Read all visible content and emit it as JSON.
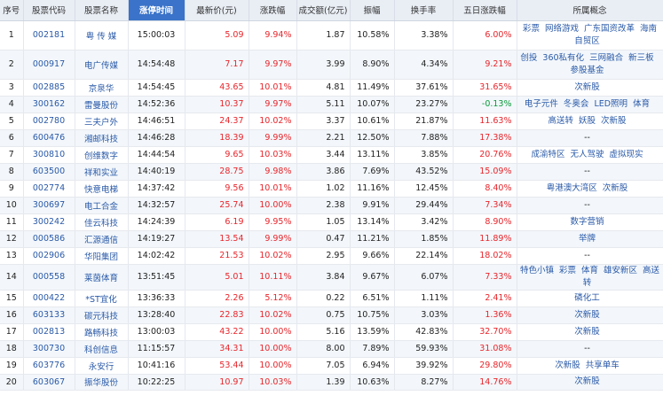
{
  "columns": [
    "序号",
    "股票代码",
    "股票名称",
    "涨停时间",
    "最新价(元)",
    "涨跌幅",
    "成交额(亿元)",
    "振幅",
    "换手率",
    "五日涨跌幅",
    "所属概念"
  ],
  "active_column": 3,
  "colors": {
    "up": "#e8252b",
    "down": "#0a9a3a",
    "header_active": "#3a73c9",
    "link": "#2a5aa8"
  },
  "rows": [
    {
      "seq": "1",
      "code": "002181",
      "name": "粤 传 媒",
      "time": "15:00:03",
      "price": "5.09",
      "change": "9.94%",
      "amount": "1.87",
      "amplitude": "10.58%",
      "turnover": "3.38%",
      "five_day": "6.00%",
      "five_dir": "up",
      "concepts": [
        "彩票",
        "网络游戏",
        "广东国资改革",
        "海南自贸区"
      ]
    },
    {
      "seq": "2",
      "code": "000917",
      "name": "电广传媒",
      "time": "14:54:48",
      "price": "7.17",
      "change": "9.97%",
      "amount": "3.99",
      "amplitude": "8.90%",
      "turnover": "4.34%",
      "five_day": "9.21%",
      "five_dir": "up",
      "concepts": [
        "创投",
        "360私有化",
        "三网融合",
        "新三板",
        "参股基金"
      ]
    },
    {
      "seq": "3",
      "code": "002885",
      "name": "京泉华",
      "time": "14:54:45",
      "price": "43.65",
      "change": "10.01%",
      "amount": "4.81",
      "amplitude": "11.49%",
      "turnover": "37.61%",
      "five_day": "31.65%",
      "five_dir": "up",
      "concepts": [
        "次新股"
      ]
    },
    {
      "seq": "4",
      "code": "300162",
      "name": "雷曼股份",
      "time": "14:52:36",
      "price": "10.37",
      "change": "9.97%",
      "amount": "5.11",
      "amplitude": "10.07%",
      "turnover": "23.27%",
      "five_day": "-0.13%",
      "five_dir": "down",
      "concepts": [
        "电子元件",
        "冬奥会",
        "LED照明",
        "体育"
      ]
    },
    {
      "seq": "5",
      "code": "002780",
      "name": "三夫户外",
      "time": "14:46:51",
      "price": "24.37",
      "change": "10.02%",
      "amount": "3.37",
      "amplitude": "10.61%",
      "turnover": "21.87%",
      "five_day": "11.63%",
      "five_dir": "up",
      "concepts": [
        "高送转",
        "妖股",
        "次新股"
      ]
    },
    {
      "seq": "6",
      "code": "600476",
      "name": "湘邮科技",
      "time": "14:46:28",
      "price": "18.39",
      "change": "9.99%",
      "amount": "2.21",
      "amplitude": "12.50%",
      "turnover": "7.88%",
      "five_day": "17.38%",
      "five_dir": "up",
      "concepts": [
        "--"
      ]
    },
    {
      "seq": "7",
      "code": "300810",
      "name": "创维数字",
      "time": "14:44:54",
      "price": "9.65",
      "change": "10.03%",
      "amount": "3.44",
      "amplitude": "13.11%",
      "turnover": "3.85%",
      "five_day": "20.76%",
      "five_dir": "up",
      "concepts": [
        "成渝特区",
        "无人驾驶",
        "虚拟现实"
      ]
    },
    {
      "seq": "8",
      "code": "603500",
      "name": "祥和实业",
      "time": "14:40:19",
      "price": "28.75",
      "change": "9.98%",
      "amount": "3.86",
      "amplitude": "7.69%",
      "turnover": "43.52%",
      "five_day": "15.09%",
      "five_dir": "up",
      "concepts": [
        "--"
      ]
    },
    {
      "seq": "9",
      "code": "002774",
      "name": "快意电梯",
      "time": "14:37:42",
      "price": "9.56",
      "change": "10.01%",
      "amount": "1.02",
      "amplitude": "11.16%",
      "turnover": "12.45%",
      "five_day": "8.40%",
      "five_dir": "up",
      "concepts": [
        "粤港澳大湾区",
        "次新股"
      ]
    },
    {
      "seq": "10",
      "code": "300697",
      "name": "电工合金",
      "time": "14:32:57",
      "price": "25.74",
      "change": "10.00%",
      "amount": "2.38",
      "amplitude": "9.91%",
      "turnover": "29.44%",
      "five_day": "7.34%",
      "five_dir": "up",
      "concepts": [
        "--"
      ]
    },
    {
      "seq": "11",
      "code": "300242",
      "name": "佳云科技",
      "time": "14:24:39",
      "price": "6.19",
      "change": "9.95%",
      "amount": "1.05",
      "amplitude": "13.14%",
      "turnover": "3.42%",
      "five_day": "8.90%",
      "five_dir": "up",
      "concepts": [
        "数字营销"
      ]
    },
    {
      "seq": "12",
      "code": "000586",
      "name": "汇源通信",
      "time": "14:19:27",
      "price": "13.54",
      "change": "9.99%",
      "amount": "0.47",
      "amplitude": "11.21%",
      "turnover": "1.85%",
      "five_day": "11.89%",
      "five_dir": "up",
      "concepts": [
        "举牌"
      ]
    },
    {
      "seq": "13",
      "code": "002906",
      "name": "华阳集团",
      "time": "14:02:42",
      "price": "21.53",
      "change": "10.02%",
      "amount": "2.95",
      "amplitude": "9.66%",
      "turnover": "22.14%",
      "five_day": "18.02%",
      "five_dir": "up",
      "concepts": [
        "--"
      ]
    },
    {
      "seq": "14",
      "code": "000558",
      "name": "莱茵体育",
      "time": "13:51:45",
      "price": "5.01",
      "change": "10.11%",
      "amount": "3.84",
      "amplitude": "9.67%",
      "turnover": "6.07%",
      "five_day": "7.33%",
      "five_dir": "up",
      "concepts": [
        "特色小镇",
        "彩票",
        "体育",
        "雄安新区",
        "高送转"
      ]
    },
    {
      "seq": "15",
      "code": "000422",
      "name": "*ST宜化",
      "time": "13:36:33",
      "price": "2.26",
      "change": "5.12%",
      "amount": "0.22",
      "amplitude": "6.51%",
      "turnover": "1.11%",
      "five_day": "2.41%",
      "five_dir": "up",
      "concepts": [
        "磷化工"
      ]
    },
    {
      "seq": "16",
      "code": "603133",
      "name": "碳元科技",
      "time": "13:28:40",
      "price": "22.83",
      "change": "10.02%",
      "amount": "0.75",
      "amplitude": "10.75%",
      "turnover": "3.03%",
      "five_day": "1.36%",
      "five_dir": "up",
      "concepts": [
        "次新股"
      ]
    },
    {
      "seq": "17",
      "code": "002813",
      "name": "路畅科技",
      "time": "13:00:03",
      "price": "43.22",
      "change": "10.00%",
      "amount": "5.16",
      "amplitude": "13.59%",
      "turnover": "42.83%",
      "five_day": "32.70%",
      "five_dir": "up",
      "concepts": [
        "次新股"
      ]
    },
    {
      "seq": "18",
      "code": "300730",
      "name": "科创信息",
      "time": "11:15:57",
      "price": "34.31",
      "change": "10.00%",
      "amount": "8.00",
      "amplitude": "7.89%",
      "turnover": "59.93%",
      "five_day": "31.08%",
      "five_dir": "up",
      "concepts": [
        "--"
      ]
    },
    {
      "seq": "19",
      "code": "603776",
      "name": "永安行",
      "time": "10:41:16",
      "price": "53.44",
      "change": "10.00%",
      "amount": "7.05",
      "amplitude": "6.94%",
      "turnover": "39.92%",
      "five_day": "29.80%",
      "five_dir": "up",
      "concepts": [
        "次新股",
        "共享单车"
      ]
    },
    {
      "seq": "20",
      "code": "603067",
      "name": "振华股份",
      "time": "10:22:25",
      "price": "10.97",
      "change": "10.03%",
      "amount": "1.39",
      "amplitude": "10.63%",
      "turnover": "8.27%",
      "five_day": "14.76%",
      "five_dir": "up",
      "concepts": [
        "次新股"
      ]
    }
  ]
}
